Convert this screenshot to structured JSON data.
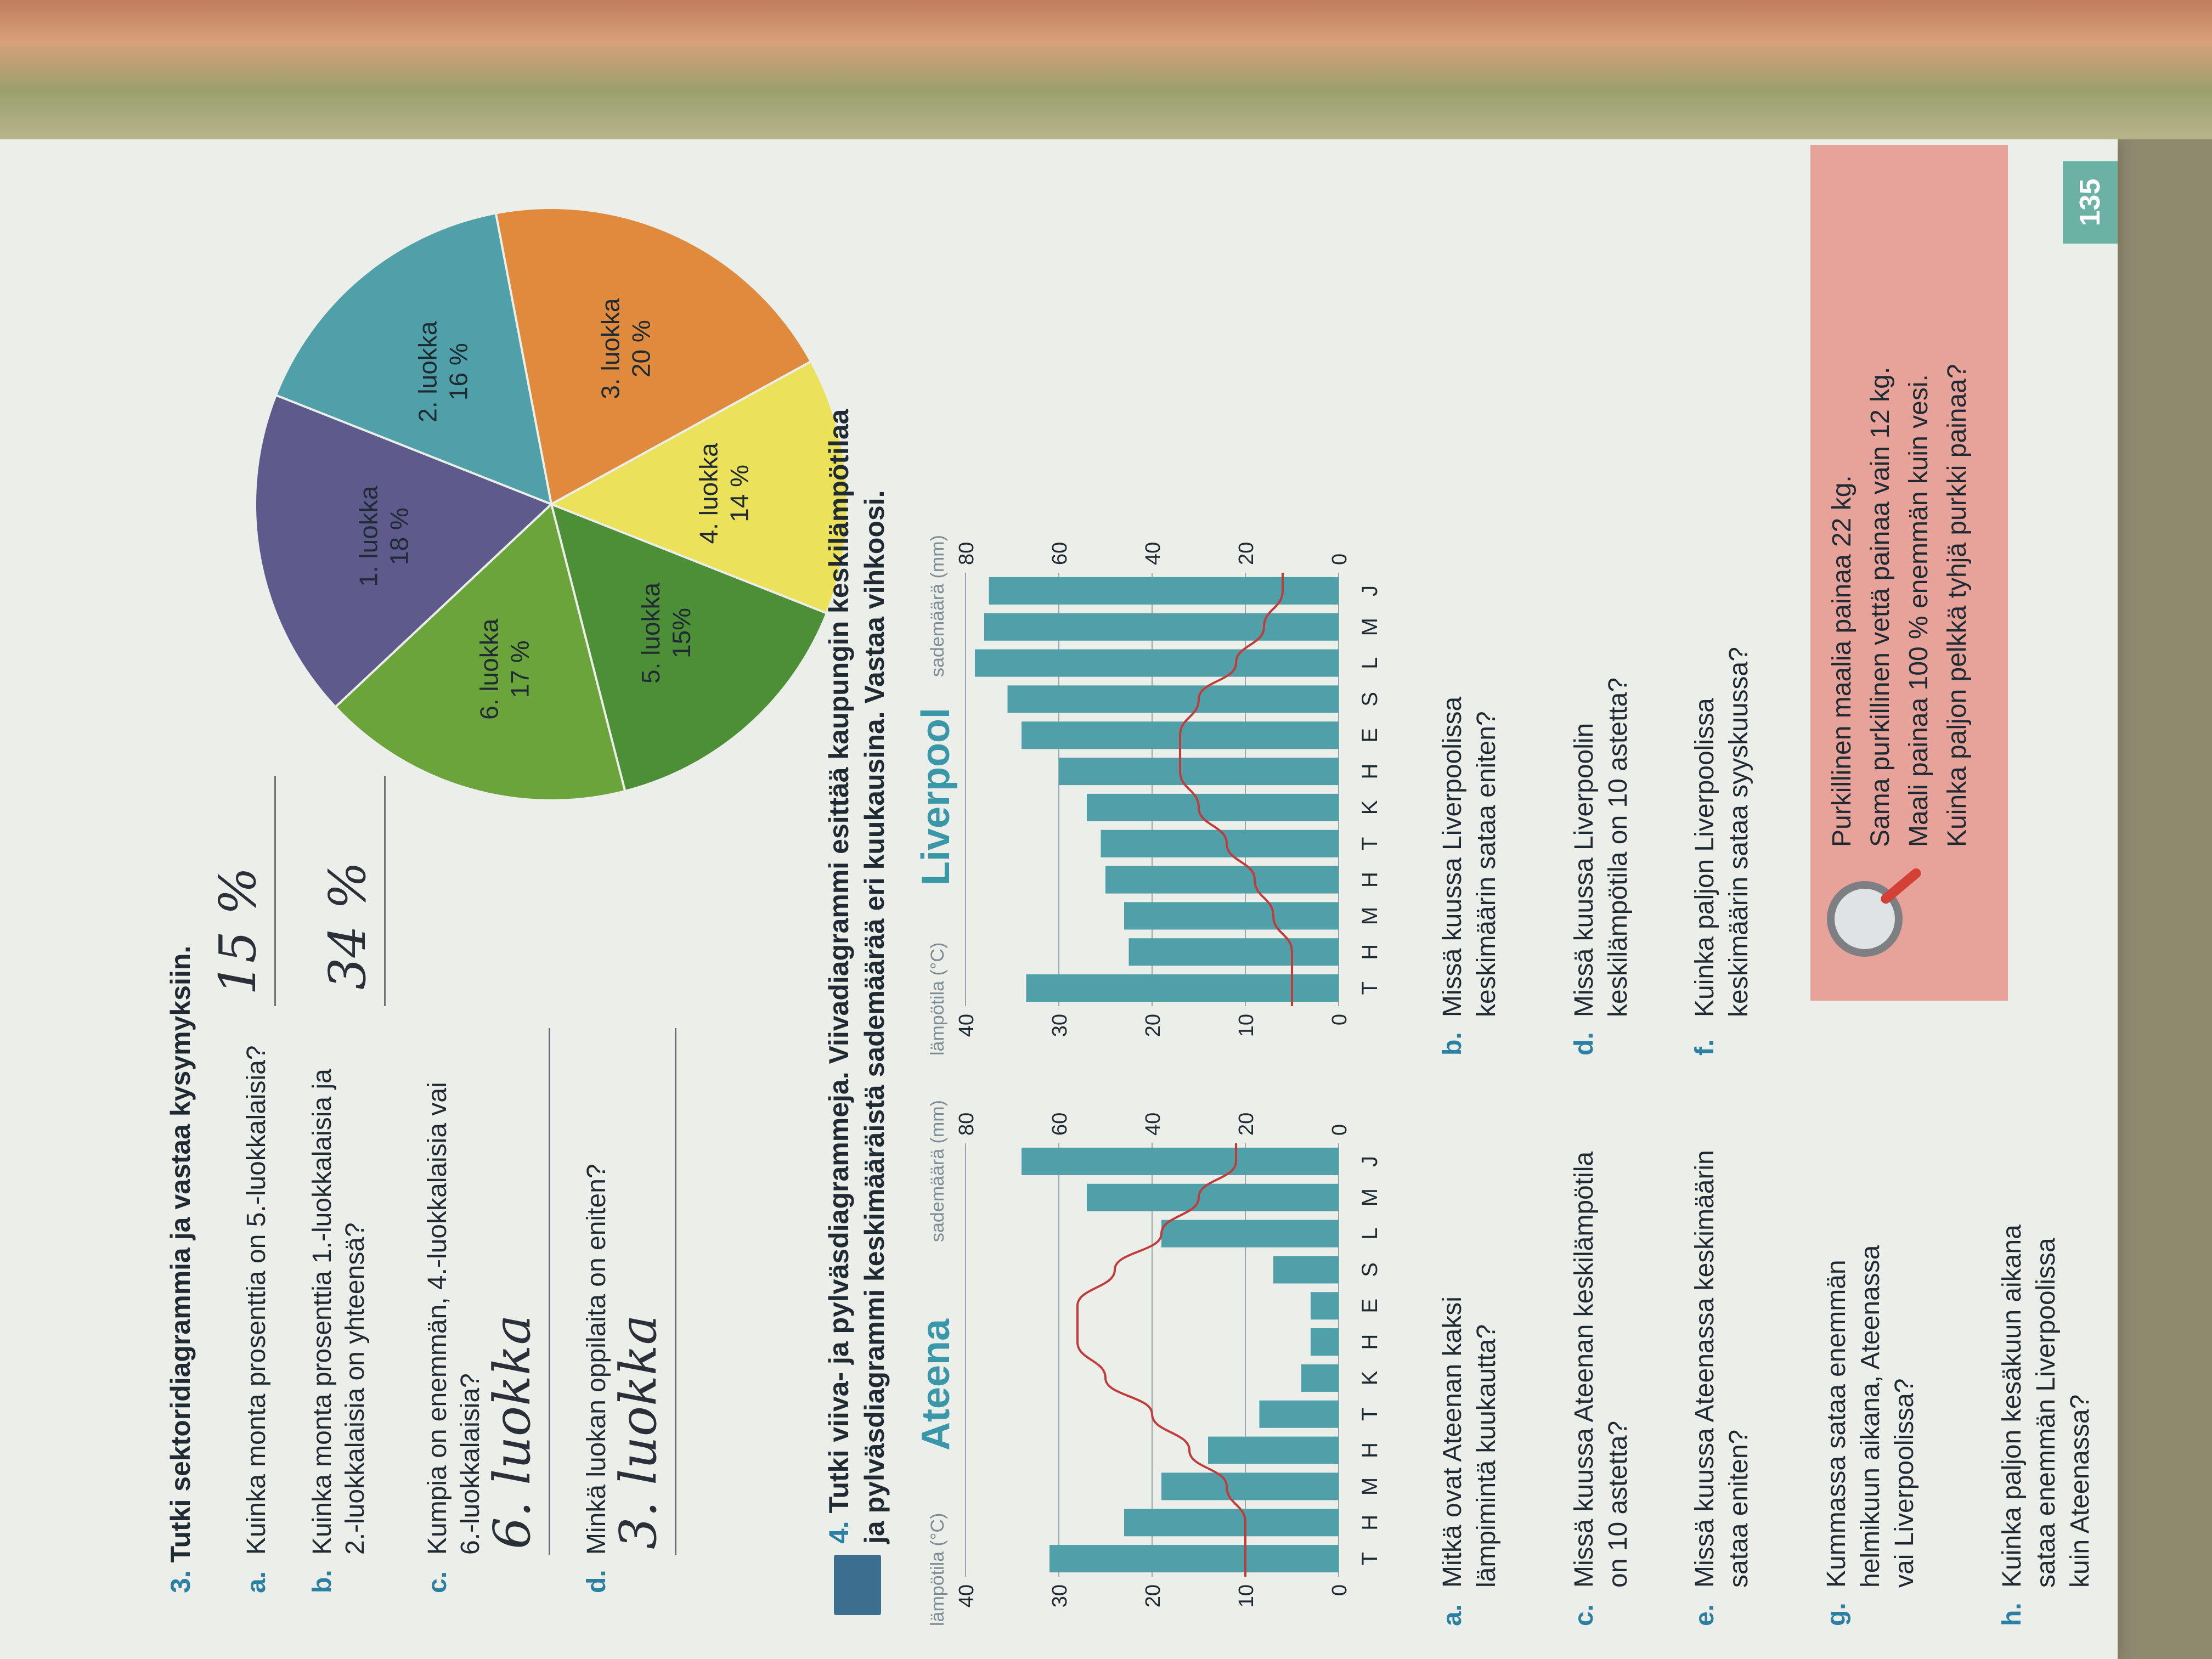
{
  "page_number": "135",
  "task3": {
    "number": "3.",
    "title": "Tutki sektoridiagrammia ja vastaa kysymyksiin.",
    "questions": [
      {
        "letter": "a.",
        "lines": [
          "Kuinka monta prosenttia on 5.-luokkalaisia?"
        ],
        "answer": "15 %"
      },
      {
        "letter": "b.",
        "lines": [
          "Kuinka monta prosenttia 1.-luokkalaisia ja",
          "2.-luokkalaisia on yhteensä?"
        ],
        "answer": "34 %"
      },
      {
        "letter": "c.",
        "lines": [
          "Kumpia on enemmän, 4.-luokkalaisia vai",
          "6.-luokkalaisia?"
        ],
        "answer": "6. luokka"
      },
      {
        "letter": "d.",
        "lines": [
          "Minkä luokan oppilaita on eniten?"
        ],
        "answer": "3. luokka"
      }
    ],
    "pie_colors": {
      "1": "#5e5a8c",
      "2": "#4fa0a8",
      "3": "#e08a3e",
      "4": "#ece15b",
      "5": "#4d8f36",
      "6": "#6ba43b"
    }
  },
  "task4": {
    "number": "4.",
    "title_lines": [
      "Tutki viiva- ja pylväsdiagrammeja. Viivadiagrammi esittää kaupungin keskilämpötilaa",
      "ja pylväsdiagrammi keskimääräistä sademäärää eri kuukausina. Vastaa vihkoosi."
    ],
    "questions": [
      {
        "letter": "a.",
        "lines": [
          "Mitkä ovat Ateenan kaksi",
          "lämpimintä kuukautta?"
        ]
      },
      {
        "letter": "b.",
        "lines": [
          "Missä kuussa Liverpoolissa",
          "keskimäärin sataa eniten?"
        ]
      },
      {
        "letter": "c.",
        "lines": [
          "Missä kuussa Ateenan keskilämpötila",
          "on 10 astetta?"
        ]
      },
      {
        "letter": "d.",
        "lines": [
          "Missä kuussa Liverpoolin",
          "keskilämpötila on 10 astetta?"
        ]
      },
      {
        "letter": "e.",
        "lines": [
          "Missä kuussa Ateenassa keskimäärin",
          "sataa eniten?"
        ]
      },
      {
        "letter": "f.",
        "lines": [
          "Kuinka paljon Liverpoolissa",
          "keskimäärin sataa syyskuussa?"
        ]
      },
      {
        "letter": "g.",
        "lines": [
          "Kummassa sataa enemmän",
          "helmikuun aikana, Ateenassa",
          "vai Liverpoolissa?"
        ]
      },
      {
        "letter": "h.",
        "lines": [
          "Kuinka paljon kesäkuun aikana",
          "sataa enemmän Liverpoolissa",
          "kuin Ateenassa?"
        ]
      }
    ]
  },
  "puzzle": {
    "lines": [
      "Purkillinen maalia painaa 22 kg.",
      "Sama purkillinen vettä painaa vain 12 kg.",
      "Maali painaa 100 % enemmän kuin vesi.",
      "Kuinka paljon pelkkä tyhjä purkki painaa?"
    ]
  },
  "chart_data": [
    {
      "type": "pie",
      "title": "",
      "slices": [
        {
          "label": "1. luokka",
          "value": 18,
          "text": "18 %",
          "color": "#5e5a8c"
        },
        {
          "label": "2. luokka",
          "value": 16,
          "text": "16 %",
          "color": "#4fa0a8"
        },
        {
          "label": "3. luokka",
          "value": 20,
          "text": "20 %",
          "color": "#e08a3e"
        },
        {
          "label": "4. luokka",
          "value": 14,
          "text": "14 %",
          "color": "#ece15b"
        },
        {
          "label": "5. luokka",
          "value": 15,
          "text": "15%",
          "color": "#4d8f36"
        },
        {
          "label": "6. luokka",
          "value": 17,
          "text": "17 %",
          "color": "#6ba43b"
        }
      ]
    },
    {
      "type": "bar",
      "title": "Ateena",
      "categories": [
        "T",
        "H",
        "M",
        "H",
        "T",
        "K",
        "H",
        "E",
        "S",
        "L",
        "M",
        "J"
      ],
      "left_label": "lämpötila (°C)",
      "right_label": "sademäärä (mm)",
      "left_ticks": [
        "0",
        "10",
        "20",
        "30",
        "40"
      ],
      "right_ticks": [
        "0",
        "20",
        "40",
        "60",
        "80"
      ],
      "series": [
        {
          "name": "sademäärä (mm)",
          "values": [
            62,
            46,
            38,
            28,
            17,
            8,
            6,
            6,
            14,
            38,
            54,
            68
          ]
        },
        {
          "name": "lämpötila (°C)",
          "values": [
            10,
            10,
            12,
            16,
            20,
            25,
            28,
            28,
            24,
            19,
            15,
            11
          ]
        }
      ],
      "ylim_left": [
        0,
        40
      ],
      "ylim_right": [
        0,
        80
      ],
      "colors": {
        "bar": "#4fa0a8",
        "line": "#c23b3b",
        "title": "#3a97a8"
      }
    },
    {
      "type": "bar",
      "title": "Liverpool",
      "categories": [
        "T",
        "H",
        "M",
        "H",
        "T",
        "K",
        "H",
        "E",
        "S",
        "L",
        "M",
        "J"
      ],
      "left_label": "lämpötila (°C)",
      "right_label": "sademäärä (mm)",
      "left_ticks": [
        "0",
        "10",
        "20",
        "30",
        "40"
      ],
      "right_ticks": [
        "0",
        "20",
        "40",
        "60",
        "80"
      ],
      "series": [
        {
          "name": "sademäärä (mm)",
          "values": [
            67,
            45,
            46,
            50,
            51,
            54,
            60,
            68,
            71,
            78,
            76,
            75
          ]
        },
        {
          "name": "lämpötila (°C)",
          "values": [
            5,
            5,
            7,
            9,
            12,
            15,
            17,
            17,
            15,
            11,
            8,
            6
          ]
        }
      ],
      "ylim_left": [
        0,
        40
      ],
      "ylim_right": [
        0,
        80
      ],
      "colors": {
        "bar": "#4fa0a8",
        "line": "#c23b3b",
        "title": "#3a97a8"
      }
    }
  ]
}
